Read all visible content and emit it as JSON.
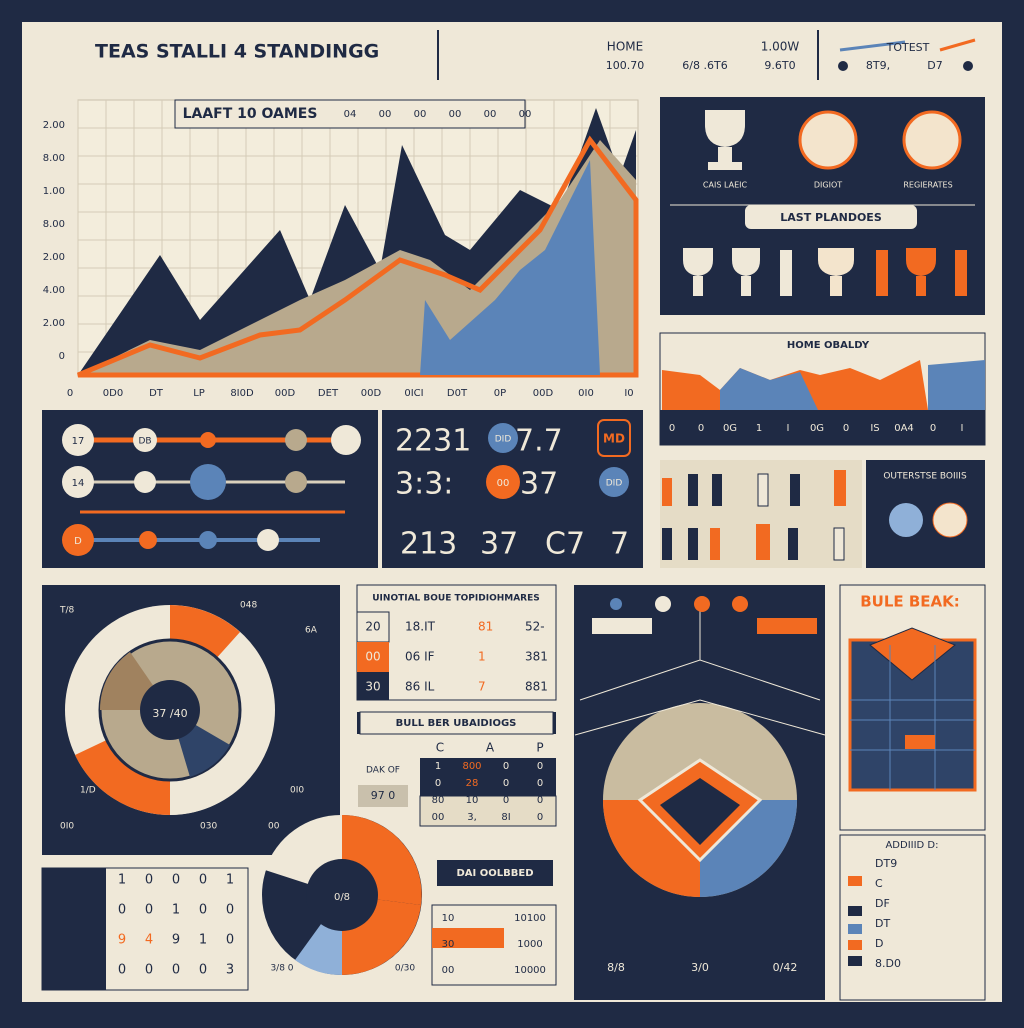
{
  "header": {
    "title": "TEAS STALLI 4 STANDINGG",
    "home": "HOME",
    "home_values": [
      "100.70",
      "6/8 .6T6"
    ],
    "record": "1.00W",
    "record_value": "9.6T0",
    "latest": "TOTEST",
    "latest_values": [
      "8T9,",
      "D7"
    ]
  },
  "trend": {
    "title": "LAAFT 10 OAMES",
    "header_marks": [
      "04",
      "00",
      "00",
      "00",
      "00",
      "00"
    ],
    "y_labels": [
      "2.00",
      "8.00",
      "1.00",
      "8.00",
      "2.00",
      "4.00",
      "2.00",
      "0"
    ],
    "x_labels": [
      "0",
      "0D0",
      "DT",
      "LP",
      "8I0D",
      "00D",
      "DET",
      "00D",
      "0ICI",
      "D0T",
      "0P",
      "00D",
      "0I0",
      "I0"
    ]
  },
  "awards": {
    "labels": [
      "CAIS LAEIC",
      "DIGIOT",
      "REGIERATES"
    ],
    "banner": "LAST PLANDOES"
  },
  "home_quality": {
    "title": "HOME OBALDY",
    "scale": [
      "0",
      "0",
      "0G",
      "1",
      "I",
      "0G",
      "0",
      "IS",
      "0A4",
      "0",
      "I"
    ]
  },
  "sliders": {
    "labels": [
      "17",
      "DB",
      "14",
      "D"
    ]
  },
  "scores": {
    "values": [
      "2231",
      "7.7",
      "3:3:",
      "37",
      "213",
      "37",
      "C7",
      "7"
    ],
    "badges": [
      "DID",
      "00",
      "DID",
      "MD"
    ]
  },
  "outerstage": {
    "title": "OUTERSTSE BOIIIS"
  },
  "pie": {
    "center": "37 /40",
    "labels": [
      "T/8",
      "048",
      "6A",
      "1/D",
      "0I0",
      "0I0",
      "030",
      "00"
    ]
  },
  "standings": {
    "title": "UINOTIAL BOUE TOPIDIOHMARES",
    "rows": [
      [
        "20",
        "18.IT",
        "81",
        "52-"
      ],
      [
        "00",
        "06 IF",
        "1",
        "381"
      ],
      [
        "30",
        "86 IL",
        "7",
        "881"
      ]
    ]
  },
  "bullpen": {
    "title": "BULL BER UBAIDIOGS",
    "headers": [
      "C",
      "A",
      "P"
    ],
    "row_label": "DAK OF",
    "badge": "97 0",
    "rows": [
      [
        "1",
        "800",
        "0",
        "0"
      ],
      [
        "0",
        "28",
        "0",
        "0"
      ],
      [
        "80",
        "10",
        "0",
        "0"
      ],
      [
        "00",
        "3,",
        "8I",
        "0"
      ]
    ]
  },
  "box": {
    "title": "DAI OOLBBED",
    "rows": [
      [
        "10",
        "10100"
      ],
      [
        "30",
        "1000"
      ],
      [
        "00",
        "10000"
      ]
    ]
  },
  "field": {
    "labels": [
      "8/8",
      "3/0",
      "0/42"
    ]
  },
  "break": {
    "title": "BULE BEAK:",
    "list_title": "ADDIIID D:",
    "rows": [
      "DT9",
      "C",
      "DF",
      "DT",
      "D",
      "8.D0"
    ]
  },
  "lineup": {
    "rows": [
      [
        "1",
        "0",
        "0",
        "0",
        "1"
      ],
      [
        "0",
        "0",
        "1",
        "0",
        "0"
      ],
      [
        "9",
        "4",
        "9",
        "1",
        "0"
      ],
      [
        "0",
        "0",
        "0",
        "0",
        "3"
      ]
    ]
  },
  "donut": {
    "center": "0/8",
    "labels": [
      "3/8 0",
      "0/30"
    ]
  }
}
